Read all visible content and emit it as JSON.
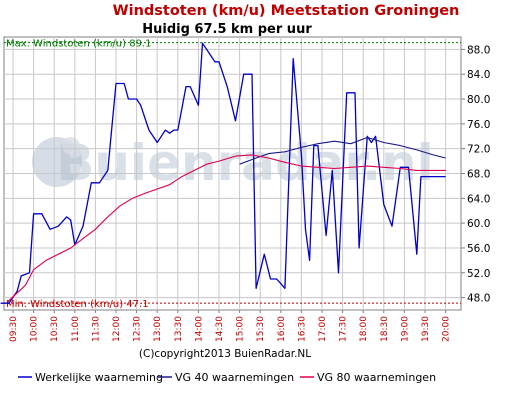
{
  "title": "Windstoten (km/u) Meetstation Groningen",
  "subtitle": "Huidig 67.5 km per uur",
  "copyright": "(C)copyright2013 BuienRadar.NL",
  "watermark": "Buienradar.nl",
  "colors": {
    "title": "#c00000",
    "series_current": "#0000c8",
    "series_vg40": "#1a1a8c",
    "series_vg80": "#e0004a",
    "max_line": "#007800",
    "min_line": "#c00000",
    "x_ticks": "#c00000",
    "grid": "#c8c8c8"
  },
  "chart_data": {
    "type": "line",
    "ylim": [
      46,
      90
    ],
    "yticks": [
      48.0,
      52.0,
      56.0,
      60.0,
      64.0,
      68.0,
      72.0,
      76.0,
      80.0,
      84.0,
      88.0
    ],
    "x_categories": [
      "09:30",
      "10:00",
      "10:30",
      "11:00",
      "11:30",
      "12:00",
      "12:30",
      "13:00",
      "13:30",
      "14:00",
      "14:30",
      "15:00",
      "15:30",
      "16:00",
      "16:30",
      "17:00",
      "17:30",
      "18:00",
      "18:30",
      "19:00",
      "19:30",
      "20:00"
    ],
    "grid": true,
    "legend_position": "bottom",
    "reference_lines": [
      {
        "label": "Max. Windstoten (km/u) 89.1",
        "value": 89.1,
        "color": "#007800"
      },
      {
        "label": "Min. Windstoten (km/u) 47.1",
        "value": 47.1,
        "color": "#c00000"
      }
    ],
    "series": [
      {
        "name": "Werkelijke waarneming",
        "color": "#0000c8",
        "x": [
          -0.6,
          -0.2,
          0.2,
          0.4,
          0.8,
          1.0,
          1.4,
          1.8,
          2.2,
          2.6,
          2.8,
          3.0,
          3.4,
          3.8,
          4.0,
          4.2,
          4.6,
          5.0,
          5.4,
          5.6,
          5.8,
          6.0,
          6.2,
          6.4,
          6.6,
          7.0,
          7.2,
          7.4,
          7.6,
          7.8,
          8.0,
          8.4,
          8.6,
          9.0,
          9.2,
          9.6,
          9.8,
          10.0,
          10.4,
          10.8,
          11.2,
          11.6,
          11.8,
          12.2,
          12.5,
          12.8,
          13.2,
          13.6,
          14.0,
          14.2,
          14.4,
          14.6,
          14.8,
          15.2,
          15.5,
          15.8,
          16.2,
          16.6,
          16.8,
          17.2,
          17.4,
          17.6,
          18.0,
          18.4,
          18.8,
          19.2,
          19.6,
          19.8,
          20.4,
          20.6,
          21.0
        ],
        "values": [
          47.1,
          47.1,
          49.0,
          51.5,
          52.0,
          61.5,
          61.5,
          59.0,
          59.5,
          61.0,
          60.5,
          56.5,
          59.5,
          66.5,
          66.5,
          66.5,
          68.5,
          82.5,
          82.5,
          80.0,
          80.0,
          80.0,
          79.0,
          77.0,
          75.0,
          73.0,
          74.0,
          75.0,
          74.5,
          75.0,
          75.0,
          82.0,
          82.0,
          79.0,
          89.0,
          87.0,
          86.0,
          86.0,
          82.0,
          76.5,
          84.0,
          84.0,
          49.5,
          55.0,
          51.0,
          51.0,
          49.5,
          86.5,
          71.0,
          59.0,
          54.0,
          72.5,
          72.5,
          58.0,
          68.5,
          52.0,
          81.0,
          81.0,
          56.0,
          74.0,
          73.0,
          74.0,
          63.0,
          59.5,
          69.0,
          69.0,
          55.0,
          67.5,
          67.5,
          67.5,
          67.5
        ]
      },
      {
        "name": "VG 40 waarnemingen",
        "color": "#1a1a8c",
        "x": [
          11.0,
          11.8,
          12.4,
          13.2,
          14.0,
          14.8,
          15.6,
          16.4,
          17.2,
          18.0,
          18.8,
          19.6,
          20.4,
          21.0
        ],
        "values": [
          69.5,
          70.5,
          71.2,
          71.5,
          72.2,
          72.8,
          73.2,
          72.8,
          73.8,
          73.0,
          72.5,
          71.8,
          71.0,
          70.5
        ]
      },
      {
        "name": "VG 80 waarnemingen",
        "color": "#e0004a",
        "x": [
          -0.2,
          0.6,
          1.0,
          1.6,
          2.2,
          2.8,
          3.4,
          4.0,
          4.6,
          5.2,
          5.8,
          6.4,
          7.0,
          7.6,
          8.2,
          8.8,
          9.4,
          10.0,
          10.8,
          11.6,
          12.4,
          13.2,
          14.0,
          14.8,
          15.6,
          16.4,
          17.2,
          18.0,
          18.8,
          19.6,
          20.4,
          21.0
        ],
        "values": [
          47.5,
          50.0,
          52.5,
          54.0,
          55.0,
          56.0,
          57.5,
          59.0,
          61.0,
          62.8,
          64.0,
          64.8,
          65.5,
          66.2,
          67.5,
          68.5,
          69.5,
          70.0,
          70.8,
          71.0,
          70.5,
          69.8,
          69.2,
          69.0,
          68.8,
          69.0,
          69.2,
          69.0,
          68.8,
          68.5,
          68.5,
          68.5
        ]
      }
    ]
  },
  "legend": [
    {
      "label": "Werkelijke waarneming",
      "color": "#0000c8"
    },
    {
      "label": "VG 40 waarnemingen",
      "color": "#1a1a8c"
    },
    {
      "label": "VG 80 waarnemingen",
      "color": "#e0004a"
    }
  ]
}
